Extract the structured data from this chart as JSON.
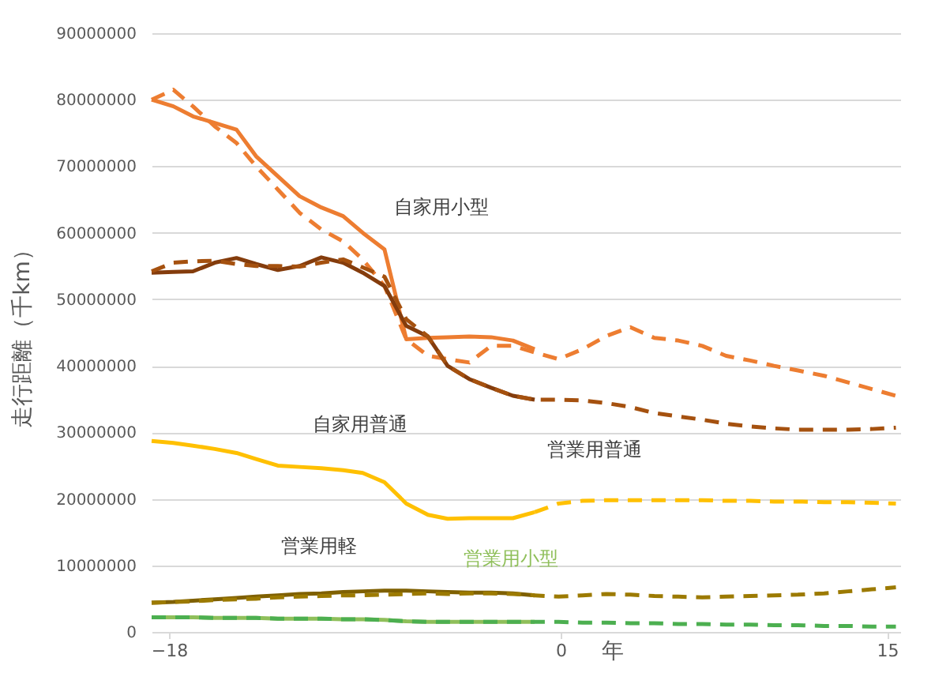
{
  "chart_data": {
    "type": "line",
    "xlabel": "年",
    "ylabel": "走行距離（千km）",
    "x": [
      -18.8,
      -17.8,
      -16.9,
      -15.9,
      -14.9,
      -14,
      -13,
      -12,
      -11,
      -10,
      -9.1,
      -8.1,
      -7.1,
      -6.1,
      -5.2,
      -4.2,
      -3.2,
      -2.2,
      -1.2,
      -0.1,
      1,
      2.1,
      3.2,
      4.3,
      5.4,
      6.5,
      7.6,
      8.7,
      9.8,
      10.9,
      12.1,
      13.2,
      14.3,
      15.4
    ],
    "series": [
      {
        "name": "自家用小型",
        "color": "#ed7d31",
        "line_style": "solid",
        "values": [
          80000000,
          79000000,
          77500000,
          76500000,
          75500000,
          71500000,
          68500000,
          65500000,
          63800000,
          62500000,
          60000000,
          57500000,
          44000000,
          44200000,
          44300000,
          44400000,
          44300000,
          43800000,
          42500000,
          null,
          null,
          null,
          null,
          null,
          null,
          null,
          null,
          null,
          null,
          null,
          null,
          null,
          null,
          null
        ]
      },
      {
        "color": "#ed7d31",
        "line_style": "dashed",
        "values": [
          80000000,
          81500000,
          79000000,
          76000000,
          73500000,
          70000000,
          66500000,
          63000000,
          60500000,
          58700000,
          56000000,
          52000000,
          44000000,
          41500000,
          41000000,
          40500000,
          43000000,
          43000000,
          42000000,
          41000000,
          42500000,
          44500000,
          45800000,
          44200000,
          43800000,
          43000000,
          41500000,
          40800000,
          40000000,
          39300000,
          38500000,
          37500000,
          36500000,
          35500000
        ]
      },
      {
        "name": "営業用普通",
        "color": "#843c0c",
        "line_style": "solid",
        "values": [
          54000000,
          54100000,
          54200000,
          55500000,
          56200000,
          55300000,
          54400000,
          55000000,
          56300000,
          55500000,
          54000000,
          52000000,
          46000000,
          44400000,
          40000000,
          38000000,
          36700000,
          35500000,
          34900000,
          null,
          null,
          null,
          null,
          null,
          null,
          null,
          null,
          null,
          null,
          null,
          null,
          null,
          null,
          null
        ]
      },
      {
        "color": "#a5510f",
        "line_style": "dashed",
        "values": [
          54200000,
          55500000,
          55700000,
          55800000,
          55300000,
          55000000,
          55000000,
          54900000,
          55500000,
          56000000,
          54800000,
          53400000,
          47000000,
          44400000,
          40000000,
          38000000,
          36700000,
          35500000,
          34900000,
          34900000,
          34800000,
          34400000,
          33800000,
          32900000,
          32400000,
          31900000,
          31300000,
          30900000,
          30600000,
          30400000,
          30400000,
          30400000,
          30500000,
          30700000
        ]
      },
      {
        "name": "自家用普通",
        "color": "#ffc000",
        "line_style": "solid",
        "values": [
          28700000,
          28400000,
          28000000,
          27500000,
          26900000,
          26000000,
          25000000,
          24800000,
          24600000,
          24300000,
          23900000,
          22500000,
          19300000,
          17600000,
          17000000,
          17100000,
          17100000,
          17100000,
          18000000,
          null,
          null,
          null,
          null,
          null,
          null,
          null,
          null,
          null,
          null,
          null,
          null,
          null,
          null,
          null
        ]
      },
      {
        "color": "#ffc000",
        "line_style": "dashed",
        "values": [
          null,
          null,
          null,
          null,
          null,
          null,
          null,
          null,
          null,
          null,
          null,
          null,
          null,
          null,
          null,
          null,
          null,
          null,
          18000000,
          19300000,
          19700000,
          19800000,
          19800000,
          19800000,
          19800000,
          19800000,
          19700000,
          19700000,
          19600000,
          19600000,
          19500000,
          19500000,
          19400000,
          19300000
        ]
      },
      {
        "name": "営業用軽",
        "color": "#7f6000",
        "line_style": "solid",
        "values": [
          4400000,
          4500000,
          4700000,
          4900000,
          5100000,
          5300000,
          5500000,
          5700000,
          5800000,
          6000000,
          6100000,
          6200000,
          6200000,
          6100000,
          6000000,
          5900000,
          5900000,
          5800000,
          5500000,
          null,
          null,
          null,
          null,
          null,
          null,
          null,
          null,
          null,
          null,
          null,
          null,
          null,
          null,
          null
        ]
      },
      {
        "color": "#9c7a00",
        "line_style": "dashed",
        "values": [
          4400000,
          4500000,
          4600000,
          4800000,
          4900000,
          5000000,
          5200000,
          5300000,
          5400000,
          5500000,
          5500000,
          5600000,
          5700000,
          5800000,
          5700000,
          5800000,
          5800000,
          5700000,
          5500000,
          5300000,
          5500000,
          5700000,
          5600000,
          5400000,
          5300000,
          5200000,
          5300000,
          5400000,
          5500000,
          5600000,
          5800000,
          6100000,
          6400000,
          6700000
        ]
      },
      {
        "name": "営業用小型",
        "color": "#8fbf5a",
        "line_style": "solid",
        "values": [
          2200000,
          2200000,
          2200000,
          2100000,
          2100000,
          2100000,
          2000000,
          2000000,
          2000000,
          1900000,
          1900000,
          1800000,
          1600000,
          1500000,
          1500000,
          1500000,
          1500000,
          1500000,
          1500000,
          null,
          null,
          null,
          null,
          null,
          null,
          null,
          null,
          null,
          null,
          null,
          null,
          null,
          null,
          null
        ]
      },
      {
        "color": "#4caf50",
        "line_style": "dashed",
        "values": [
          2200000,
          2200000,
          2200000,
          2100000,
          2100000,
          2100000,
          2000000,
          2000000,
          2000000,
          1900000,
          1900000,
          1800000,
          1600000,
          1500000,
          1500000,
          1500000,
          1500000,
          1500000,
          1500000,
          1500000,
          1400000,
          1400000,
          1300000,
          1300000,
          1200000,
          1200000,
          1100000,
          1100000,
          1000000,
          1000000,
          900000,
          900000,
          800000,
          800000
        ]
      }
    ],
    "xlim": [
      -18.8,
      15.6
    ],
    "xticks": [
      -18,
      0,
      15
    ],
    "ylim": [
      0,
      90000000
    ],
    "yticks": [
      0,
      10000000,
      20000000,
      30000000,
      40000000,
      50000000,
      60000000,
      70000000,
      80000000,
      90000000
    ],
    "grid": "y"
  }
}
